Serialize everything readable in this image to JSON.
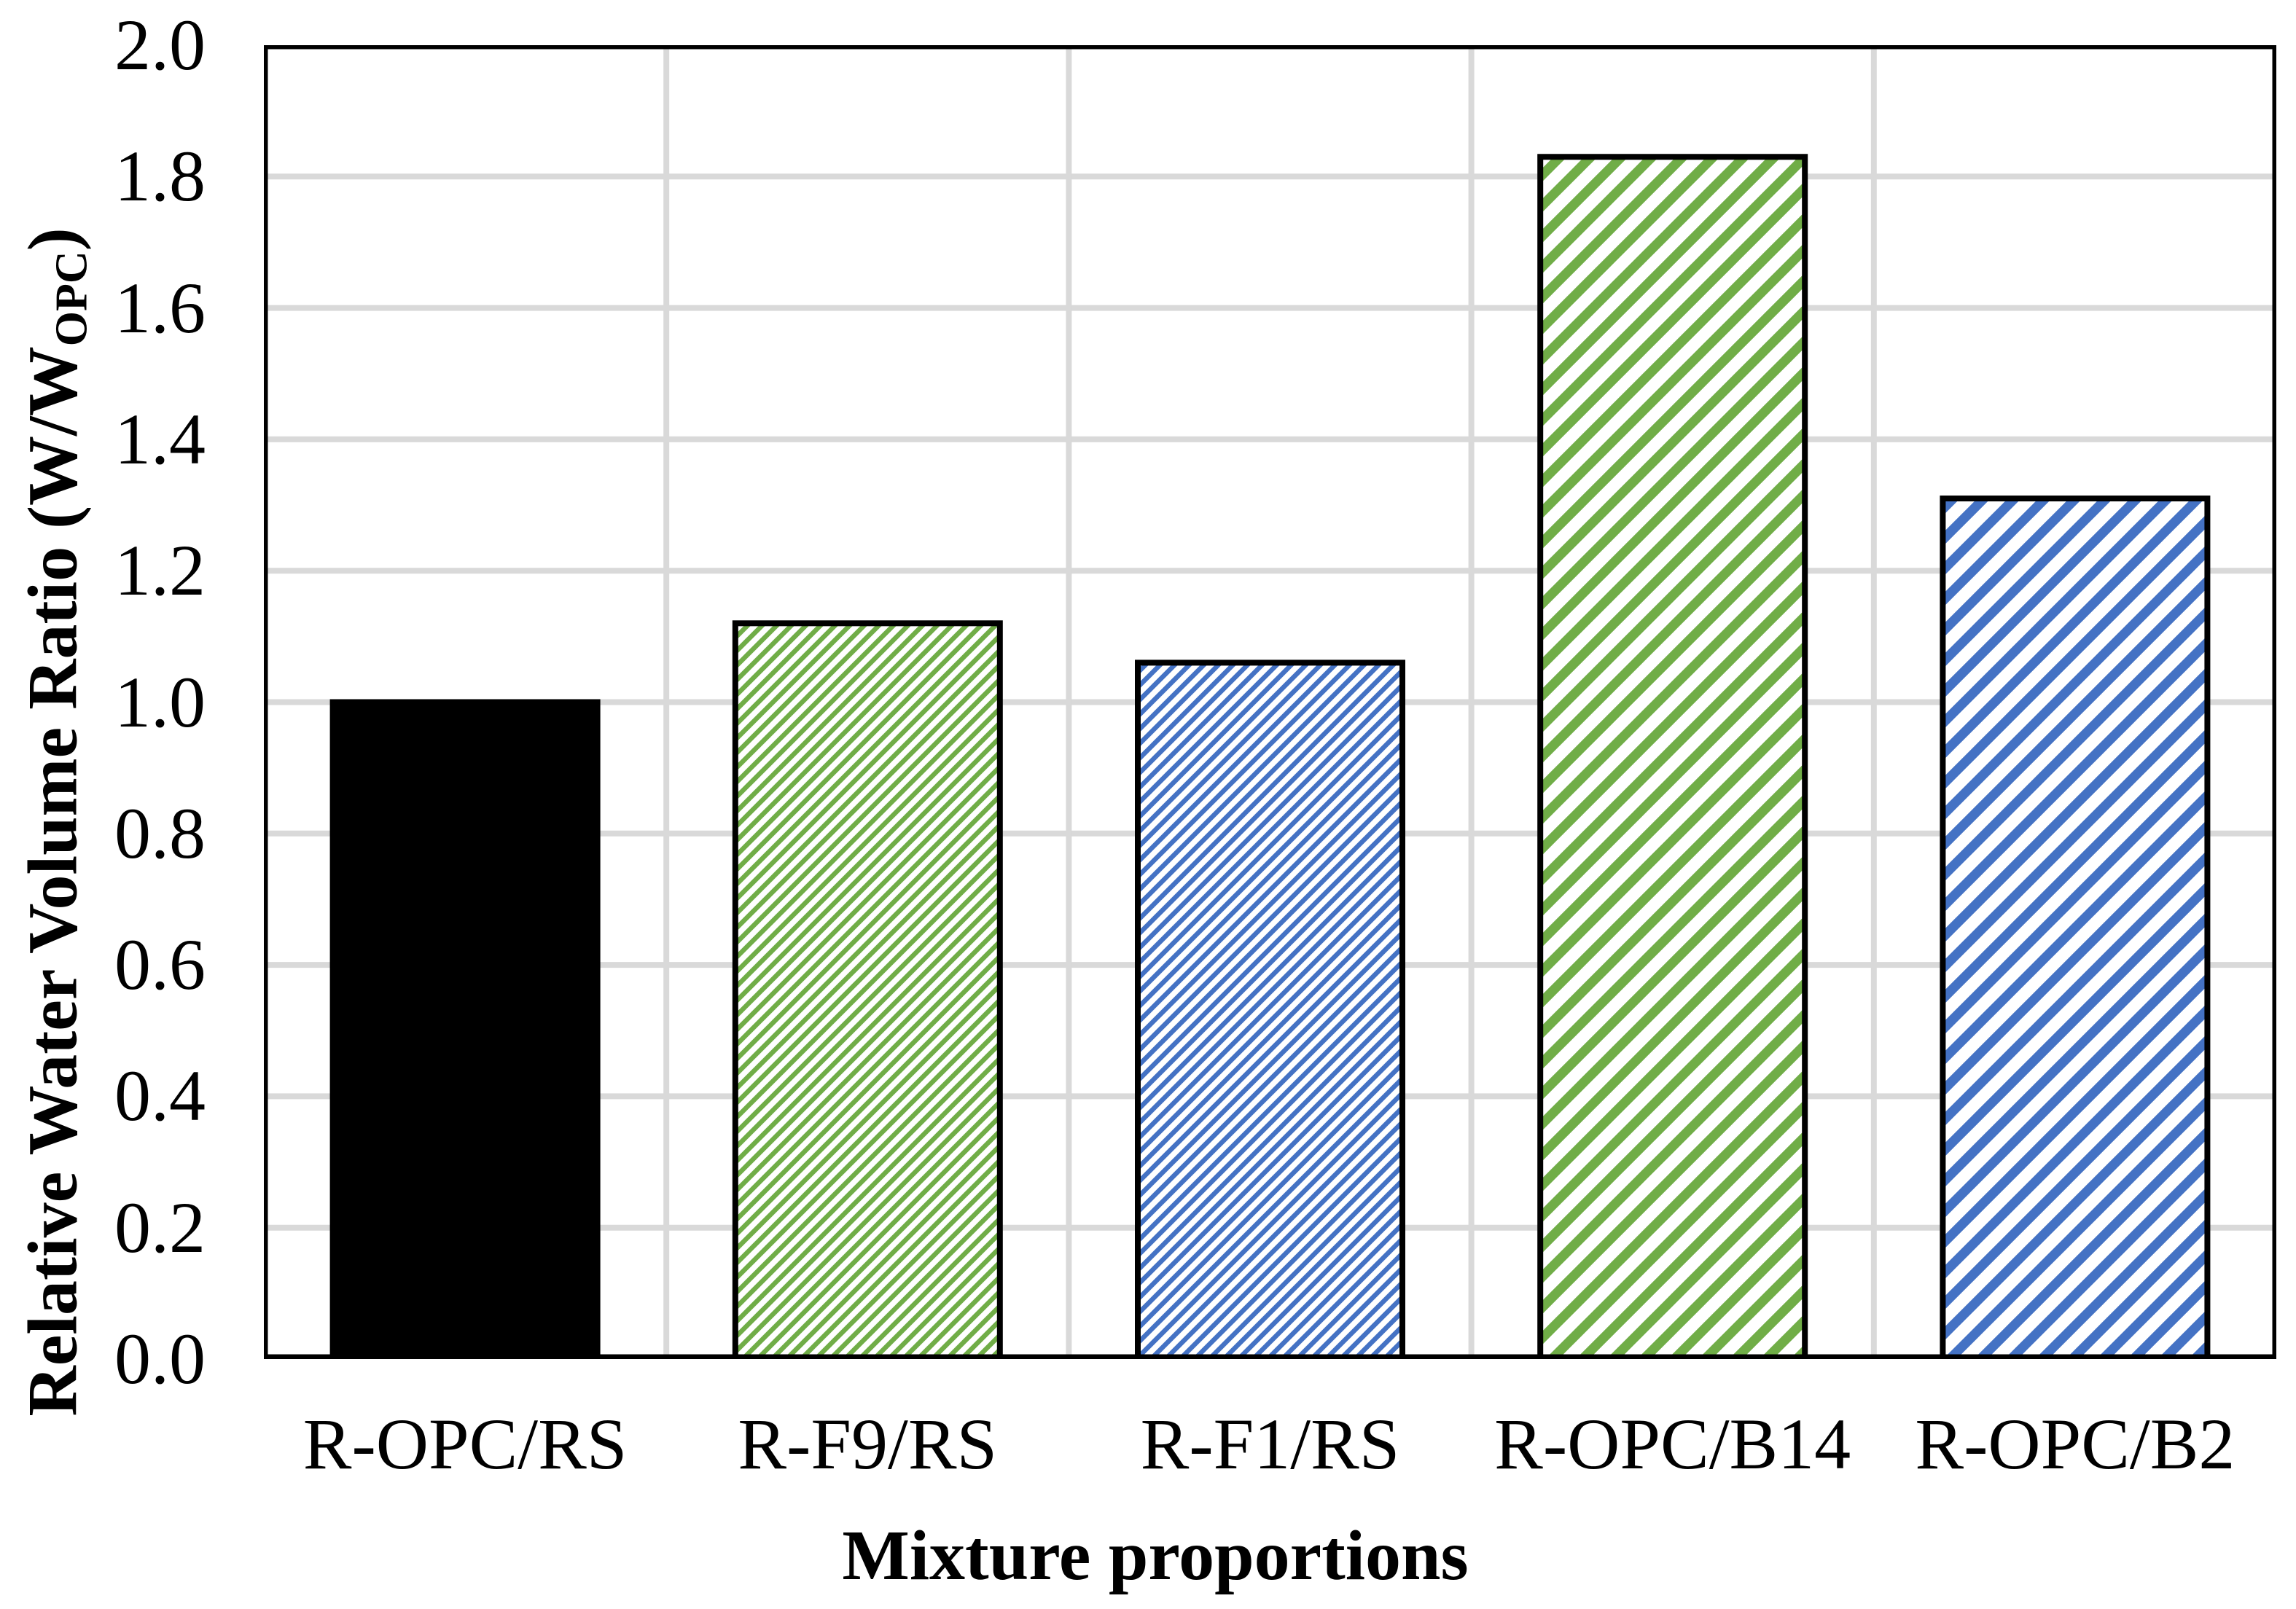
{
  "chart_data": {
    "type": "bar",
    "title": "",
    "categories": [
      "R-OPC/RS",
      "R-F9/RS",
      "R-F1/RS",
      "R-OPC/B14",
      "R-OPC/B2"
    ],
    "values": [
      1.0,
      1.12,
      1.06,
      1.83,
      1.31
    ],
    "bar_styles": [
      {
        "pattern": "solid",
        "color": "#000000"
      },
      {
        "pattern": "diagonal-fine",
        "color": "#70AD47"
      },
      {
        "pattern": "diagonal-fine",
        "color": "#4472C4"
      },
      {
        "pattern": "diagonal-wide",
        "color": "#70AD47"
      },
      {
        "pattern": "diagonal-wide",
        "color": "#4472C4"
      }
    ],
    "xlabel": "Mixture proportions",
    "ylabel_main": "Relative Water Volume Ratio (W/W",
    "ylabel_sub": "OPC",
    "ylabel_end": ")",
    "ylim": [
      0,
      2.0
    ],
    "ytick_step": 0.2,
    "ytick_labels": [
      "0.0",
      "0.2",
      "0.4",
      "0.6",
      "0.8",
      "1.0",
      "1.2",
      "1.4",
      "1.6",
      "1.8",
      "2.0"
    ],
    "grid": true,
    "legend_position": "none",
    "colors": {
      "bar_black": "#000000",
      "bar_green": "#70AD47",
      "bar_blue": "#4472C4",
      "gridline": "#D9D9D9",
      "axis": "#000000",
      "background": "#FFFFFF"
    }
  }
}
